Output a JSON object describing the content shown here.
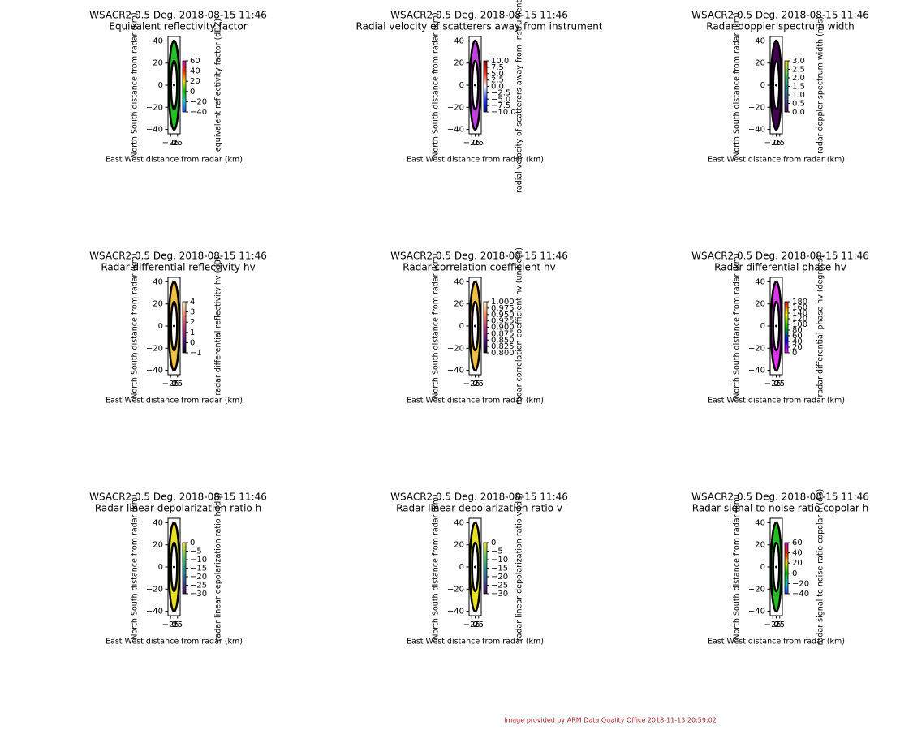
{
  "chart_data": [
    {
      "type": "ppi",
      "title": "WSACR2 0.5 Deg. 2018-08-15 11:46",
      "subtitle": "Equivalent reflectivity factor",
      "xlabel": "East West distance from radar (km)",
      "ylabel": "North South distance from radar (km)",
      "xlim": [
        -44,
        44
      ],
      "ylim": [
        -44,
        44
      ],
      "xticks": [
        {
          "value": -25,
          "label": "−25"
        },
        0,
        25
      ],
      "yticks": [
        40,
        20,
        0,
        {
          "value": -20,
          "label": "−20"
        },
        {
          "value": -40,
          "label": "−40"
        }
      ],
      "fill": "#22c022",
      "colorbar": {
        "label": "equivalent reflectivity factor (dBZ)",
        "lim": [
          -40,
          60
        ],
        "colors": [
          "#1f3fff",
          "#19c8c8",
          "#00c000",
          "#e0e000",
          "#ff2000",
          "#c000c0"
        ],
        "ticks": [
          60,
          40,
          20,
          0,
          {
            "value": -20,
            "label": "−20"
          },
          {
            "value": -40,
            "label": "−40"
          }
        ]
      }
    },
    {
      "type": "ppi",
      "title": "WSACR2 0.5 Deg. 2018-08-15 11:46",
      "subtitle": "Radial velocity of scatterers away from instrument",
      "xlabel": "East West distance from radar (km)",
      "ylabel": "North South distance from radar (km)",
      "xlim": [
        -44,
        44
      ],
      "ylim": [
        -44,
        44
      ],
      "xticks": [
        {
          "value": -25,
          "label": "−25"
        },
        0,
        25
      ],
      "yticks": [
        40,
        20,
        0,
        {
          "value": -20,
          "label": "−20"
        },
        {
          "value": -40,
          "label": "−40"
        }
      ],
      "fill": "#c040e0",
      "colorbar": {
        "label": "radial velocity of scatterers away from instrument (m/s)",
        "lim": [
          -10,
          10
        ],
        "colors": [
          "#000080",
          "#2040ff",
          "#ffffff",
          "#ff3020",
          "#800000"
        ],
        "ticks": [
          {
            "value": 10,
            "label": "10.0"
          },
          7.5,
          {
            "value": 5,
            "label": "5.0"
          },
          2.5,
          {
            "value": 0,
            "label": "0.0"
          },
          {
            "value": -2.5,
            "label": "−2.5"
          },
          {
            "value": -5,
            "label": "−5.0"
          },
          {
            "value": -7.5,
            "label": "−7.5"
          },
          {
            "value": -10,
            "label": "−10.0"
          }
        ]
      }
    },
    {
      "type": "ppi",
      "title": "WSACR2 0.5 Deg. 2018-08-15 11:46",
      "subtitle": "Radar doppler spectrum width",
      "xlabel": "East West distance from radar (km)",
      "ylabel": "North South distance from radar (km)",
      "xlim": [
        -44,
        44
      ],
      "ylim": [
        -44,
        44
      ],
      "xticks": [
        {
          "value": -25,
          "label": "−25"
        },
        0,
        25
      ],
      "yticks": [
        40,
        20,
        0,
        {
          "value": -20,
          "label": "−20"
        },
        {
          "value": -40,
          "label": "−40"
        }
      ],
      "fill": "#440154",
      "colorbar": {
        "label": "radar doppler spectrum width (m/s)",
        "lim": [
          0,
          3
        ],
        "colors": [
          "#440154",
          "#3b528b",
          "#21918c",
          "#5ec962",
          "#fde725"
        ],
        "ticks": [
          {
            "value": 3,
            "label": "3.0"
          },
          2.5,
          {
            "value": 2,
            "label": "2.0"
          },
          1.5,
          {
            "value": 1,
            "label": "1.0"
          },
          0.5,
          {
            "value": 0,
            "label": "0.0"
          }
        ]
      }
    },
    {
      "type": "ppi",
      "title": "WSACR2 0.5 Deg. 2018-08-15 11:46",
      "subtitle": "Radar differential reflectivity hv",
      "xlabel": "East West distance from radar (km)",
      "ylabel": "North South distance from radar (km)",
      "xlim": [
        -44,
        44
      ],
      "ylim": [
        -44,
        44
      ],
      "xticks": [
        {
          "value": -25,
          "label": "−25"
        },
        0,
        25
      ],
      "yticks": [
        40,
        20,
        0,
        {
          "value": -20,
          "label": "−20"
        },
        {
          "value": -40,
          "label": "−40"
        }
      ],
      "fill": "#f0c040",
      "colorbar": {
        "label": "radar differential reflectivity hv (dB)",
        "lim": [
          -1,
          4
        ],
        "colors": [
          "#000004",
          "#51127c",
          "#b73779",
          "#fc8961",
          "#fcfdbf"
        ],
        "ticks": [
          4,
          3,
          2,
          1,
          0,
          {
            "value": -1,
            "label": "−1"
          }
        ]
      }
    },
    {
      "type": "ppi",
      "title": "WSACR2 0.5 Deg. 2018-08-15 11:46",
      "subtitle": "Radar correlation coefficient hv",
      "xlabel": "East West distance from radar (km)",
      "ylabel": "North South distance from radar (km)",
      "xlim": [
        -44,
        44
      ],
      "ylim": [
        -44,
        44
      ],
      "xticks": [
        {
          "value": -25,
          "label": "−25"
        },
        0,
        25
      ],
      "yticks": [
        40,
        20,
        0,
        {
          "value": -20,
          "label": "−20"
        },
        {
          "value": -40,
          "label": "−40"
        }
      ],
      "fill": "#f0c040",
      "colorbar": {
        "label": "radar correlation coefficient hv (unitless)",
        "lim": [
          0.8,
          1
        ],
        "colors": [
          "#000004",
          "#51127c",
          "#b73779",
          "#fc8961",
          "#fcfdbf"
        ],
        "ticks": [
          {
            "value": 1,
            "label": "1.000"
          },
          {
            "value": 0.975,
            "label": "0.975"
          },
          {
            "value": 0.95,
            "label": "0.950"
          },
          {
            "value": 0.925,
            "label": "0.925"
          },
          {
            "value": 0.9,
            "label": "0.900"
          },
          {
            "value": 0.875,
            "label": "0.875"
          },
          {
            "value": 0.85,
            "label": "0.850"
          },
          {
            "value": 0.825,
            "label": "0.825"
          },
          {
            "value": 0.8,
            "label": "0.800"
          }
        ]
      }
    },
    {
      "type": "ppi",
      "title": "WSACR2 0.5 Deg. 2018-08-15 11:46",
      "subtitle": "Radar differential phase hv",
      "xlabel": "East West distance from radar (km)",
      "ylabel": "North South distance from radar (km)",
      "xlim": [
        -44,
        44
      ],
      "ylim": [
        -44,
        44
      ],
      "xticks": [
        {
          "value": -25,
          "label": "−25"
        },
        0,
        25
      ],
      "yticks": [
        40,
        20,
        0,
        {
          "value": -20,
          "label": "−20"
        },
        {
          "value": -40,
          "label": "−40"
        }
      ],
      "fill": "#e030f0",
      "colorbar": {
        "label": "radar differential phase hv (degrees)",
        "lim": [
          0,
          180
        ],
        "colors": [
          "#ff00ff",
          "#0000ff",
          "#00c000",
          "#ffff00",
          "#ff0000"
        ],
        "ticks": [
          180,
          160,
          140,
          120,
          100,
          80,
          60,
          40,
          20,
          0
        ]
      }
    },
    {
      "type": "ppi",
      "title": "WSACR2 0.5 Deg. 2018-08-15 11:46",
      "subtitle": "Radar linear depolarization ratio h",
      "xlabel": "East West distance from radar (km)",
      "ylabel": "North South distance from radar (km)",
      "xlim": [
        -44,
        44
      ],
      "ylim": [
        -44,
        44
      ],
      "xticks": [
        {
          "value": -25,
          "label": "−25"
        },
        0,
        25
      ],
      "yticks": [
        40,
        20,
        0,
        {
          "value": -20,
          "label": "−20"
        },
        {
          "value": -40,
          "label": "−40"
        }
      ],
      "fill": "#e8e020",
      "colorbar": {
        "label": "radar linear depolarization ratio h (dB)",
        "lim": [
          -30,
          0
        ],
        "colors": [
          "#440154",
          "#3b528b",
          "#21918c",
          "#5ec962",
          "#fde725"
        ],
        "ticks": [
          0,
          {
            "value": -5,
            "label": "−5"
          },
          {
            "value": -10,
            "label": "−10"
          },
          {
            "value": -15,
            "label": "−15"
          },
          {
            "value": -20,
            "label": "−20"
          },
          {
            "value": -25,
            "label": "−25"
          },
          {
            "value": -30,
            "label": "−30"
          }
        ]
      }
    },
    {
      "type": "ppi",
      "title": "WSACR2 0.5 Deg. 2018-08-15 11:46",
      "subtitle": "Radar linear depolarization ratio v",
      "xlabel": "East West distance from radar (km)",
      "ylabel": "North South distance from radar (km)",
      "xlim": [
        -44,
        44
      ],
      "ylim": [
        -44,
        44
      ],
      "xticks": [
        {
          "value": -25,
          "label": "−25"
        },
        0,
        25
      ],
      "yticks": [
        40,
        20,
        0,
        {
          "value": -20,
          "label": "−20"
        },
        {
          "value": -40,
          "label": "−40"
        }
      ],
      "fill": "#e8e020",
      "colorbar": {
        "label": "radar linear depolarization ratio v (dB)",
        "lim": [
          -30,
          0
        ],
        "colors": [
          "#440154",
          "#3b528b",
          "#21918c",
          "#5ec962",
          "#fde725"
        ],
        "ticks": [
          0,
          {
            "value": -5,
            "label": "−5"
          },
          {
            "value": -10,
            "label": "−10"
          },
          {
            "value": -15,
            "label": "−15"
          },
          {
            "value": -20,
            "label": "−20"
          },
          {
            "value": -25,
            "label": "−25"
          },
          {
            "value": -30,
            "label": "−30"
          }
        ]
      }
    },
    {
      "type": "ppi",
      "title": "WSACR2 0.5 Deg. 2018-08-15 11:46",
      "subtitle": "Radar signal to noise ratio copolar h",
      "xlabel": "East West distance from radar (km)",
      "ylabel": "North South distance from radar (km)",
      "xlim": [
        -44,
        44
      ],
      "ylim": [
        -44,
        44
      ],
      "xticks": [
        {
          "value": -25,
          "label": "−25"
        },
        0,
        25
      ],
      "yticks": [
        40,
        20,
        0,
        {
          "value": -20,
          "label": "−20"
        },
        {
          "value": -40,
          "label": "−40"
        }
      ],
      "fill": "#22c022",
      "colorbar": {
        "label": "radar signal to noise ratio copolar h (dB)",
        "lim": [
          -40,
          60
        ],
        "colors": [
          "#1f3fff",
          "#19c8c8",
          "#00c000",
          "#e0e000",
          "#ff2000",
          "#c000c0"
        ],
        "ticks": [
          60,
          40,
          20,
          0,
          {
            "value": -20,
            "label": "−20"
          },
          {
            "value": -40,
            "label": "−40"
          }
        ]
      }
    }
  ],
  "footer": "Image provided by ARM Data Quality Office 2018-11-13 20:59:02"
}
